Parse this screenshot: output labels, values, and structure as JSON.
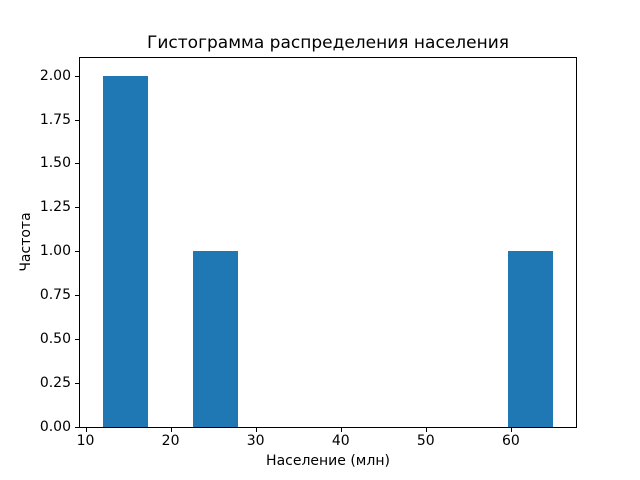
{
  "chart_data": {
    "type": "bar",
    "subtype": "histogram",
    "title": "Гистограмма распределения населения",
    "xlabel": "Население (млн)",
    "ylabel": "Частота",
    "bar_color": "#1f77b4",
    "background_color": "#ffffff",
    "text_color": "#000000",
    "grid": false,
    "legend": false,
    "xlim": [
      9.35,
      67.65
    ],
    "ylim": [
      0,
      2.1
    ],
    "bars": [
      {
        "bin_start": 12.0,
        "bin_end": 17.3,
        "frequency": 2
      },
      {
        "bin_start": 22.6,
        "bin_end": 27.9,
        "frequency": 1
      },
      {
        "bin_start": 59.7,
        "bin_end": 65.0,
        "frequency": 1
      }
    ],
    "xticks": [
      {
        "value": 10,
        "label": "10"
      },
      {
        "value": 20,
        "label": "20"
      },
      {
        "value": 30,
        "label": "30"
      },
      {
        "value": 40,
        "label": "40"
      },
      {
        "value": 50,
        "label": "50"
      },
      {
        "value": 60,
        "label": "60"
      }
    ],
    "yticks": [
      {
        "value": 0.0,
        "label": "0.00"
      },
      {
        "value": 0.25,
        "label": "0.25"
      },
      {
        "value": 0.5,
        "label": "0.50"
      },
      {
        "value": 0.75,
        "label": "0.75"
      },
      {
        "value": 1.0,
        "label": "1.00"
      },
      {
        "value": 1.25,
        "label": "1.25"
      },
      {
        "value": 1.5,
        "label": "1.50"
      },
      {
        "value": 1.75,
        "label": "1.75"
      },
      {
        "value": 2.0,
        "label": "2.00"
      }
    ]
  }
}
